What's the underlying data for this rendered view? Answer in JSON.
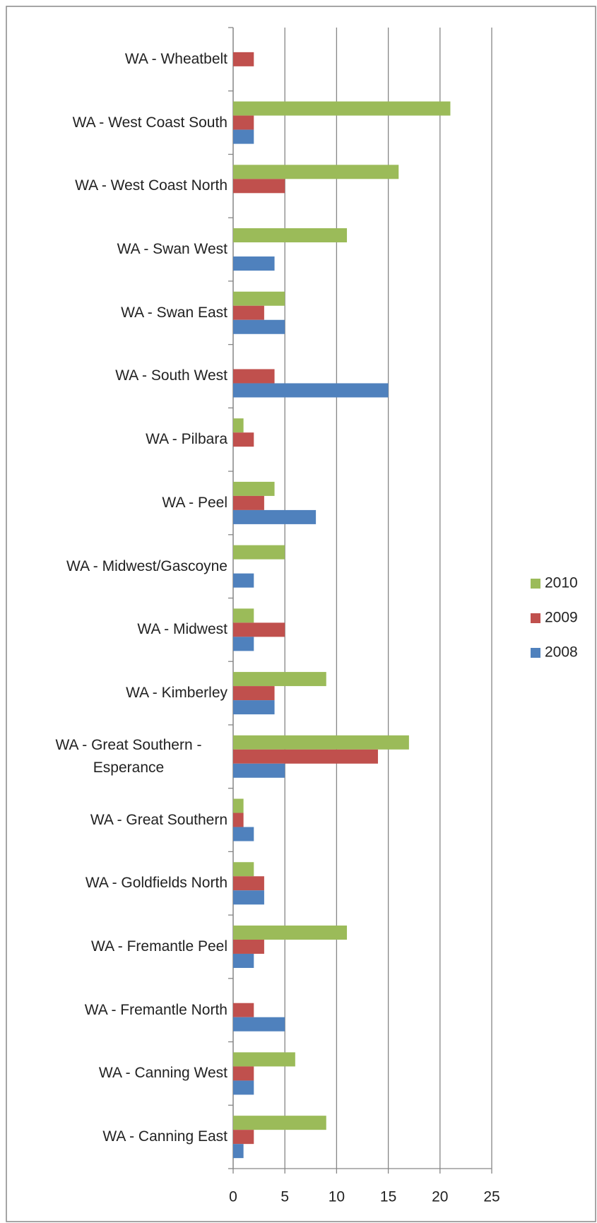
{
  "chart_data": {
    "type": "hbar",
    "categories": [
      "WA - Wheatbelt",
      "WA - West Coast South",
      "WA - West Coast North",
      "WA - Swan West",
      "WA - Swan East",
      "WA - South West",
      "WA - Pilbara",
      "WA - Peel",
      "WA - Midwest/Gascoyne",
      "WA - Midwest",
      "WA - Kimberley",
      "WA - Great Southern - Esperance",
      "WA - Great Southern",
      "WA - Goldfields North",
      "WA - Fremantle Peel",
      "WA - Fremantle North",
      "WA - Canning West",
      "WA - Canning East"
    ],
    "series": [
      {
        "name": "2010",
        "color": "#9bbb59",
        "values": [
          0,
          21,
          16,
          11,
          5,
          0,
          1,
          4,
          5,
          2,
          9,
          17,
          1,
          2,
          11,
          0,
          6,
          9
        ]
      },
      {
        "name": "2009",
        "color": "#c0504d",
        "values": [
          2,
          2,
          5,
          0,
          3,
          4,
          2,
          3,
          0,
          5,
          4,
          14,
          1,
          3,
          3,
          2,
          2,
          2
        ]
      },
      {
        "name": "2008",
        "color": "#4f81bd",
        "values": [
          0,
          2,
          0,
          4,
          5,
          15,
          0,
          8,
          2,
          2,
          4,
          5,
          2,
          3,
          2,
          5,
          2,
          1
        ]
      }
    ],
    "xlim": [
      0,
      25
    ],
    "xticks": [
      0,
      5,
      10,
      15,
      20,
      25
    ],
    "grid": true,
    "legend": "right"
  }
}
